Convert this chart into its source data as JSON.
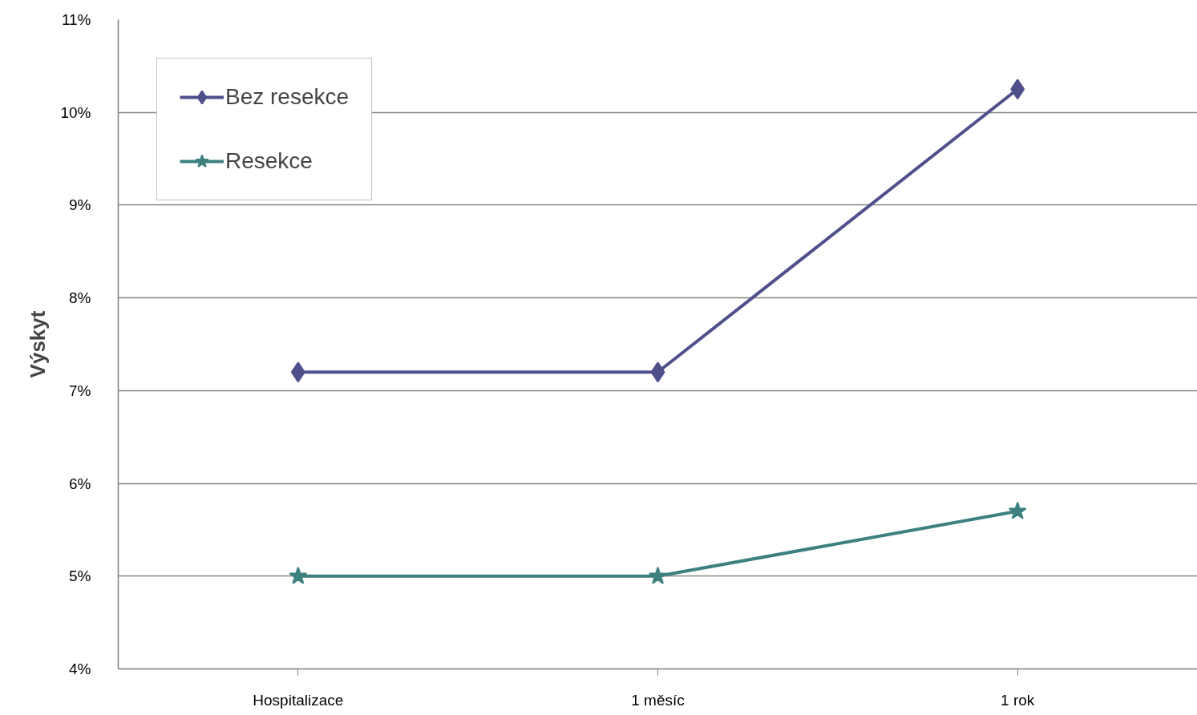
{
  "chart_data": {
    "type": "line",
    "ylabel": "Výskyt",
    "categories": [
      "Hospitalizace",
      "1 měsíc",
      "1 rok"
    ],
    "series": [
      {
        "name": "Bez resekce",
        "color": "#4f4f8c",
        "marker": "diamond",
        "values": [
          7.2,
          7.2,
          10.25
        ]
      },
      {
        "name": "Resekce",
        "color": "#3d8080",
        "marker": "star",
        "values": [
          5.0,
          5.0,
          5.7
        ]
      }
    ],
    "ylim": [
      4,
      11
    ],
    "yticks": [
      {
        "value": 4,
        "label": "4%"
      },
      {
        "value": 5,
        "label": "5%"
      },
      {
        "value": 6,
        "label": "6%"
      },
      {
        "value": 7,
        "label": "7%"
      },
      {
        "value": 8,
        "label": "8%"
      },
      {
        "value": 9,
        "label": "9%"
      },
      {
        "value": 10,
        "label": "10%"
      },
      {
        "value": 11,
        "label": "11%"
      }
    ],
    "grid": "y",
    "legend": "top left",
    "line_style": "solid"
  }
}
